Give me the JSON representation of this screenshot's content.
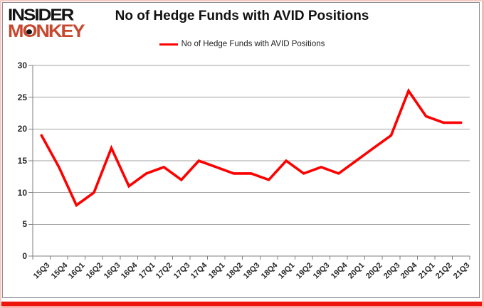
{
  "logo": {
    "line1": "INSIDER",
    "line2_pre": "M",
    "line2_o": "O",
    "line2_post": "NKEY"
  },
  "title": "No of Hedge Funds with AVID Positions",
  "legend": {
    "label": "No of Hedge Funds with AVID Positions",
    "color": "#fe0000"
  },
  "colors": {
    "line_red": "#fe0000",
    "logo_red": "#c8482f",
    "bottom_bar_red": "#ee150d",
    "gridline_gray": "#a0a0a0",
    "axis_gray": "#7f7f7f"
  },
  "chart_data": {
    "type": "line",
    "title": "No of Hedge Funds with AVID Positions",
    "categories": [
      "15Q3",
      "15Q4",
      "16Q1",
      "16Q2",
      "16Q3",
      "16Q4",
      "17Q1",
      "17Q2",
      "17Q3",
      "17Q4",
      "18Q1",
      "18Q2",
      "18Q3",
      "18Q4",
      "19Q1",
      "19Q2",
      "19Q3",
      "19Q4",
      "20Q1",
      "20Q2",
      "20Q3",
      "20Q4",
      "21Q1",
      "21Q2",
      "21Q3"
    ],
    "series": [
      {
        "name": "No of Hedge Funds with AVID Positions",
        "values": [
          19,
          14,
          8,
          10,
          17,
          11,
          13,
          14,
          12,
          15,
          14,
          13,
          13,
          12,
          15,
          13,
          14,
          13,
          15,
          17,
          19,
          26,
          22,
          21,
          21
        ]
      }
    ],
    "xlabel": "",
    "ylabel": "",
    "ylim": [
      0,
      30
    ],
    "ytick_step": 5,
    "grid": true,
    "legend_position": "top-center"
  }
}
